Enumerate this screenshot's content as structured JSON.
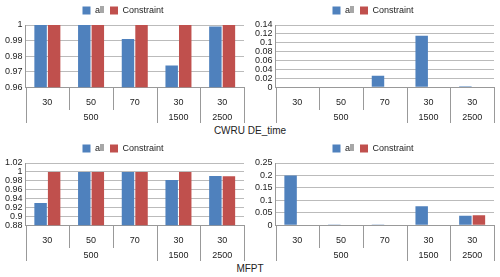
{
  "captions": [
    "CWRU DE_time",
    "MFPT"
  ],
  "chart_data": [
    {
      "type": "bar",
      "categories": [
        "30",
        "50",
        "70",
        "30",
        "30"
      ],
      "groups": [
        {
          "label": "500",
          "size": 3
        },
        {
          "label": "1500",
          "size": 1
        },
        {
          "label": "2500",
          "size": 1
        }
      ],
      "series": [
        {
          "name": "all",
          "color": "#4f81bd",
          "values": [
            1,
            1,
            0.991,
            0.974,
            0.999
          ]
        },
        {
          "name": "Constraint",
          "color": "#c0504d",
          "values": [
            1,
            1,
            1,
            1,
            1
          ]
        }
      ],
      "ylim": [
        0.96,
        1
      ],
      "yticks": [
        0.96,
        0.97,
        0.98,
        0.99,
        1
      ],
      "grid": true,
      "legend": "top"
    },
    {
      "type": "bar",
      "categories": [
        "30",
        "50",
        "70",
        "30",
        "30"
      ],
      "groups": [
        {
          "label": "500",
          "size": 3
        },
        {
          "label": "1500",
          "size": 1
        },
        {
          "label": "2500",
          "size": 1
        }
      ],
      "series": [
        {
          "name": "all",
          "color": "#4f81bd",
          "values": [
            0.001,
            0.001,
            0.026,
            0.116,
            0.002
          ]
        },
        {
          "name": "Constraint",
          "color": "#c0504d",
          "values": [
            0,
            0,
            0,
            0,
            0
          ]
        }
      ],
      "ylim": [
        0,
        0.14
      ],
      "yticks": [
        0,
        0.02,
        0.04,
        0.06,
        0.08,
        0.1,
        0.12,
        0.14
      ],
      "grid": true,
      "legend": "top"
    },
    {
      "type": "bar",
      "categories": [
        "30",
        "50",
        "70",
        "30",
        "30"
      ],
      "groups": [
        {
          "label": "500",
          "size": 3
        },
        {
          "label": "1500",
          "size": 1
        },
        {
          "label": "2500",
          "size": 1
        }
      ],
      "series": [
        {
          "name": "all",
          "color": "#4f81bd",
          "values": [
            0.93,
            1,
            1,
            0.982,
            0.991
          ]
        },
        {
          "name": "Constraint",
          "color": "#c0504d",
          "values": [
            1,
            1,
            1,
            1,
            0.99
          ]
        }
      ],
      "ylim": [
        0.88,
        1.02
      ],
      "yticks": [
        0.88,
        0.9,
        0.92,
        0.94,
        0.96,
        0.98,
        1,
        1.02
      ],
      "grid": true,
      "legend": "top"
    },
    {
      "type": "bar",
      "categories": [
        "30",
        "50",
        "70",
        "30",
        "30"
      ],
      "groups": [
        {
          "label": "500",
          "size": 3
        },
        {
          "label": "1500",
          "size": 1
        },
        {
          "label": "2500",
          "size": 1
        }
      ],
      "series": [
        {
          "name": "all",
          "color": "#4f81bd",
          "values": [
            0.2,
            0.001,
            0.001,
            0.076,
            0.038
          ]
        },
        {
          "name": "Constraint",
          "color": "#c0504d",
          "values": [
            0,
            0,
            0,
            0,
            0.04
          ]
        }
      ],
      "ylim": [
        0,
        0.25
      ],
      "yticks": [
        0,
        0.05,
        0.1,
        0.15,
        0.2,
        0.25
      ],
      "grid": true,
      "legend": "top"
    }
  ]
}
